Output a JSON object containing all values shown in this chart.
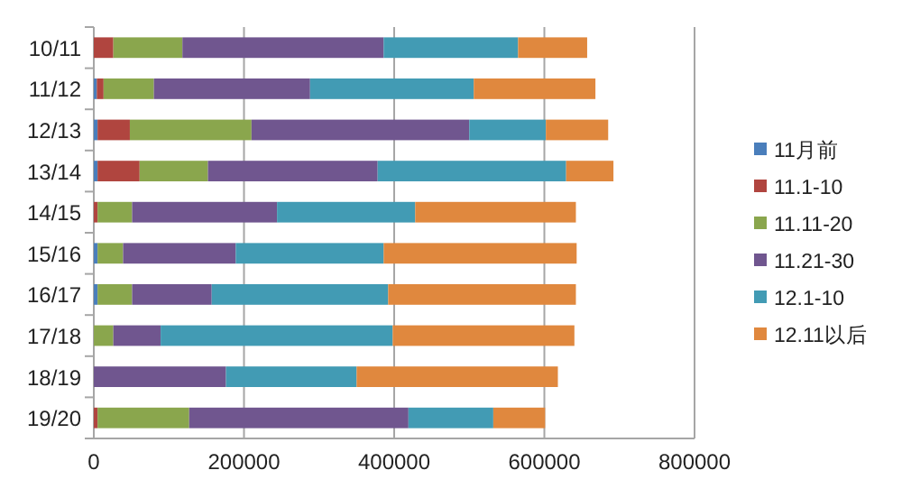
{
  "chart_data": {
    "type": "bar",
    "orientation": "horizontal",
    "stacked": true,
    "categories": [
      "10/11",
      "11/12",
      "12/13",
      "13/14",
      "14/15",
      "15/16",
      "16/17",
      "17/18",
      "18/19",
      "19/20"
    ],
    "series": [
      {
        "name": "11月前",
        "color": "#4a7ebb",
        "values": [
          0,
          4000,
          5000,
          5000,
          0,
          5000,
          5000,
          0,
          0,
          0
        ]
      },
      {
        "name": "11.1-10",
        "color": "#b0453f",
        "values": [
          26000,
          9000,
          43000,
          56000,
          5000,
          0,
          0,
          0,
          0,
          5000
        ]
      },
      {
        "name": "11.11-20",
        "color": "#8aa64d",
        "values": [
          92000,
          67000,
          162000,
          91000,
          46000,
          34000,
          46000,
          26000,
          0,
          122000
        ]
      },
      {
        "name": "11.21-30",
        "color": "#70568f",
        "values": [
          268000,
          208000,
          290000,
          226000,
          193000,
          150000,
          106000,
          63000,
          176000,
          292000
        ]
      },
      {
        "name": "12.1-10",
        "color": "#429bb4",
        "values": [
          179000,
          218000,
          102000,
          251000,
          184000,
          197000,
          235000,
          309000,
          174000,
          113000
        ]
      },
      {
        "name": "12.11以后",
        "color": "#e0883e",
        "values": [
          92000,
          162000,
          83000,
          63000,
          214000,
          257000,
          250000,
          242000,
          268000,
          69000
        ]
      }
    ],
    "xlim": [
      0,
      800000
    ],
    "xticks": [
      0,
      200000,
      400000,
      600000,
      800000
    ],
    "grid": "x",
    "legend": "right"
  }
}
